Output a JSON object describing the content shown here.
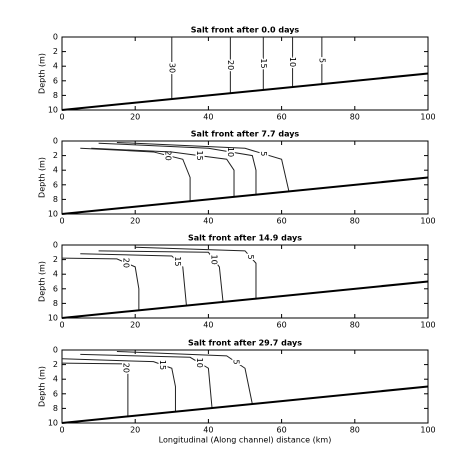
{
  "chart_data": [
    {
      "type": "contour",
      "title": "Salt front after 0.0 days",
      "ylabel": "Depth (m)",
      "xlim": [
        0,
        100
      ],
      "ylim": [
        10,
        0
      ],
      "xticks": [
        0,
        20,
        40,
        60,
        80,
        100
      ],
      "yticks": [
        0,
        2,
        4,
        6,
        8,
        10
      ],
      "bed": {
        "x": [
          0,
          100
        ],
        "y": [
          10,
          5
        ]
      },
      "contours": [
        {
          "level": 30,
          "x": [
            30,
            30
          ],
          "y": [
            0,
            8.5
          ]
        },
        {
          "level": 20,
          "x": [
            46,
            46
          ],
          "y": [
            0,
            7.7
          ]
        },
        {
          "level": 15,
          "x": [
            55,
            55
          ],
          "y": [
            0,
            7.25
          ]
        },
        {
          "level": 10,
          "x": [
            63,
            63
          ],
          "y": [
            0,
            6.85
          ]
        },
        {
          "level": 5,
          "x": [
            71,
            71
          ],
          "y": [
            0,
            6.45
          ]
        }
      ]
    },
    {
      "type": "contour",
      "title": "Salt front after 7.7 days",
      "ylabel": "Depth (m)",
      "xlim": [
        0,
        100
      ],
      "ylim": [
        10,
        0
      ],
      "xticks": [
        0,
        20,
        40,
        60,
        80,
        100
      ],
      "yticks": [
        0,
        2,
        4,
        6,
        8,
        10
      ],
      "bed": {
        "x": [
          0,
          100
        ],
        "y": [
          10,
          5
        ]
      },
      "contours": [
        {
          "level": 20,
          "x": [
            5,
            25,
            33,
            35,
            35
          ],
          "y": [
            1,
            1.5,
            2.5,
            5,
            8.2
          ]
        },
        {
          "level": 15,
          "x": [
            8,
            30,
            45,
            47,
            47
          ],
          "y": [
            1,
            1.5,
            2.5,
            4,
            7.6
          ]
        },
        {
          "level": 10,
          "x": [
            10,
            40,
            52,
            53,
            53
          ],
          "y": [
            0.3,
            1,
            2,
            4,
            7.3
          ]
        },
        {
          "level": 5,
          "x": [
            15,
            50,
            60,
            62
          ],
          "y": [
            0.2,
            1,
            2.5,
            6.9
          ]
        }
      ]
    },
    {
      "type": "contour",
      "title": "Salt front after 14.9 days",
      "ylabel": "Depth (m)",
      "xlim": [
        0,
        100
      ],
      "ylim": [
        10,
        0
      ],
      "xticks": [
        0,
        20,
        40,
        60,
        80,
        100
      ],
      "yticks": [
        0,
        2,
        4,
        6,
        8,
        10
      ],
      "bed": {
        "x": [
          0,
          100
        ],
        "y": [
          10,
          5
        ]
      },
      "contours": [
        {
          "level": 20,
          "x": [
            0,
            15,
            20,
            21,
            21
          ],
          "y": [
            1.8,
            1.9,
            3,
            6,
            8.9
          ]
        },
        {
          "level": 15,
          "x": [
            5,
            30,
            33,
            34
          ],
          "y": [
            1.2,
            1.5,
            3,
            8.3
          ]
        },
        {
          "level": 10,
          "x": [
            10,
            40,
            43,
            44
          ],
          "y": [
            0.8,
            1,
            3,
            7.8
          ]
        },
        {
          "level": 5,
          "x": [
            20,
            50,
            53,
            53
          ],
          "y": [
            0.3,
            0.8,
            2.5,
            7.4
          ]
        }
      ]
    },
    {
      "type": "contour",
      "title": "Salt front after 29.7 days",
      "ylabel": "Depth (m)",
      "xlabel": "Longitudinal (Along channel) distance (km)",
      "xlim": [
        0,
        100
      ],
      "ylim": [
        10,
        0
      ],
      "xticks": [
        0,
        20,
        40,
        60,
        80,
        100
      ],
      "yticks": [
        0,
        2,
        4,
        6,
        8,
        10
      ],
      "bed": {
        "x": [
          0,
          100
        ],
        "y": [
          10,
          5
        ]
      },
      "contours": [
        {
          "level": 20,
          "x": [
            0,
            17,
            18,
            18
          ],
          "y": [
            1.8,
            1.9,
            3,
            9.1
          ]
        },
        {
          "level": 15,
          "x": [
            0,
            25,
            30,
            31,
            31
          ],
          "y": [
            1.2,
            1.6,
            2.5,
            5,
            8.5
          ]
        },
        {
          "level": 10,
          "x": [
            5,
            35,
            40,
            41
          ],
          "y": [
            0.6,
            1,
            2.5,
            8
          ]
        },
        {
          "level": 5,
          "x": [
            15,
            45,
            50,
            52
          ],
          "y": [
            0.2,
            0.8,
            2.5,
            7.4
          ]
        }
      ]
    }
  ]
}
